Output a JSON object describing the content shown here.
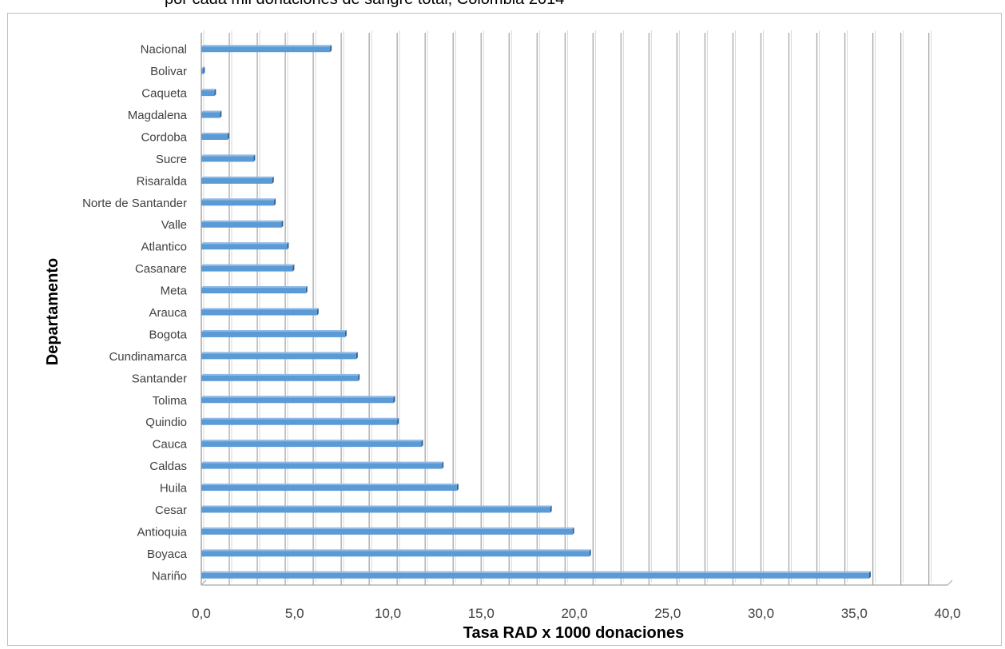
{
  "page": {
    "title": "por cada mil donaciones de sangre total, Colombia 2014"
  },
  "colors": {
    "bar_fill": "#5b9bd5",
    "bar_top": "#8fb9e6",
    "bar_shadow": "#2f5f93",
    "grid": "#a6a6a6",
    "grid_shade": "#d9d9d9"
  },
  "chart_data": {
    "type": "bar",
    "orientation": "horizontal",
    "xlabel": "Tasa RAD x 1000 donaciones",
    "ylabel": "Departamento",
    "xlim": [
      0,
      40
    ],
    "x_ticks": [
      "0,0",
      "5,0",
      "10,0",
      "15,0",
      "20,0",
      "25,0",
      "30,0",
      "35,0",
      "40,0"
    ],
    "grid": true,
    "minor_grid_step": 1.5,
    "categories": [
      "Nacional",
      "Bolivar",
      "Caqueta",
      "Magdalena",
      "Cordoba",
      "Sucre",
      "Risaralda",
      "Norte de Santander",
      "Valle",
      "Atlantico",
      "Casanare",
      "Meta",
      "Arauca",
      "Bogota",
      "Cundinamarca",
      "Santander",
      "Tolima",
      "Quindio",
      "Cauca",
      "Caldas",
      "Huila",
      "Cesar",
      "Antioquia",
      "Boyaca",
      "Nariño"
    ],
    "values": [
      6.9,
      0.1,
      0.7,
      1.0,
      1.4,
      2.8,
      3.8,
      3.9,
      4.3,
      4.6,
      4.9,
      5.6,
      6.2,
      7.7,
      8.3,
      8.4,
      10.3,
      10.5,
      11.8,
      12.9,
      13.7,
      18.7,
      19.9,
      20.8,
      35.8
    ]
  }
}
